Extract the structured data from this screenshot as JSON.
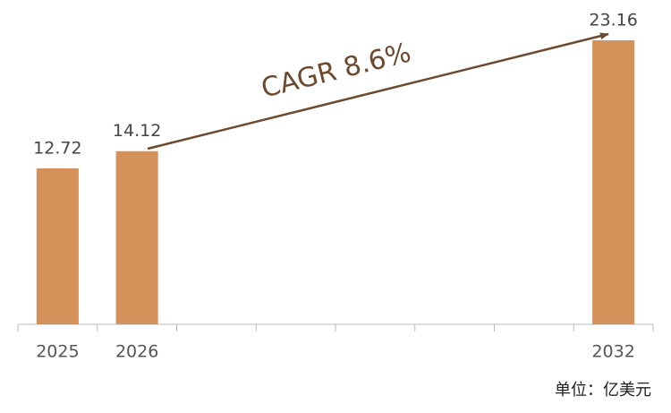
{
  "chart_data": {
    "type": "bar",
    "categories": [
      "2025",
      "2026",
      null,
      null,
      null,
      null,
      null,
      "2032"
    ],
    "values": [
      12.72,
      14.12,
      null,
      null,
      null,
      null,
      null,
      23.16
    ],
    "color": "#d49159",
    "annotation": "CAGR  8.6%",
    "unit_label": "单位：亿美元"
  }
}
